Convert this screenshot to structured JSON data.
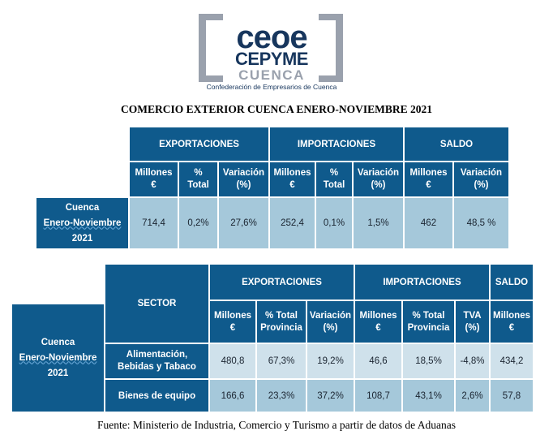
{
  "logo": {
    "line1": "ceoe",
    "line2": "CEPYME",
    "line3": "CUENCA",
    "tagline": "Confederación de Empresarios de Cuenca"
  },
  "title": "COMERCIO EXTERIOR CUENCA ENERO-NOVIEMBRE 2021",
  "table1": {
    "groups": {
      "exportaciones": "EXPORTACIONES",
      "importaciones": "IMPORTACIONES",
      "saldo": "SALDO"
    },
    "cols": {
      "exp_millones": "Millones €",
      "exp_total": "% Total",
      "exp_variacion": "Variación (%)",
      "imp_millones": "Millones €",
      "imp_total": "% Total",
      "imp_variacion": "Variación (%)",
      "saldo_millones": "Millones €",
      "saldo_variacion": "Variación (%)"
    },
    "row_label_line1": "Cuenca",
    "row_label_line2": "Enero-Noviembre",
    "row_label_line3": "2021",
    "values": {
      "exp_millones": "714,4",
      "exp_total": "0,2%",
      "exp_variacion": "27,6%",
      "imp_millones": "252,4",
      "imp_total": "0,1%",
      "imp_variacion": "1,5%",
      "saldo_millones": "462",
      "saldo_variacion": "48,5 %"
    }
  },
  "table2": {
    "sector_header": "SECTOR",
    "groups": {
      "exportaciones": "EXPORTACIONES",
      "importaciones": "IMPORTACIONES",
      "saldo": "SALDO"
    },
    "cols": {
      "exp_millones": "Millones €",
      "exp_total": "% Total Provincia",
      "exp_variacion": "Variación (%)",
      "imp_millones": "Millones €",
      "imp_total": "% Total Provincia",
      "imp_tva": "TVA (%)",
      "saldo_millones": "Millones €"
    },
    "side_label_line1": "Cuenca",
    "side_label_line2": "Enero-Noviembre",
    "side_label_line3": "2021",
    "rows": [
      {
        "sector": "Alimentación, Bebidas y Tabaco",
        "exp_millones": "480,8",
        "exp_total": "67,3%",
        "exp_variacion": "19,2%",
        "imp_millones": "46,6",
        "imp_total": "18,5%",
        "imp_tva": "-4,8%",
        "saldo_millones": "434,2"
      },
      {
        "sector": "Bienes de equipo",
        "exp_millones": "166,6",
        "exp_total": "23,3%",
        "exp_variacion": "37,2%",
        "imp_millones": "108,7",
        "imp_total": "43,1%",
        "imp_tva": "2,6%",
        "saldo_millones": "57,8"
      }
    ]
  },
  "footer": "Fuente: Ministerio de Industria, Comercio y Turismo a partir de datos de Aduanas"
}
